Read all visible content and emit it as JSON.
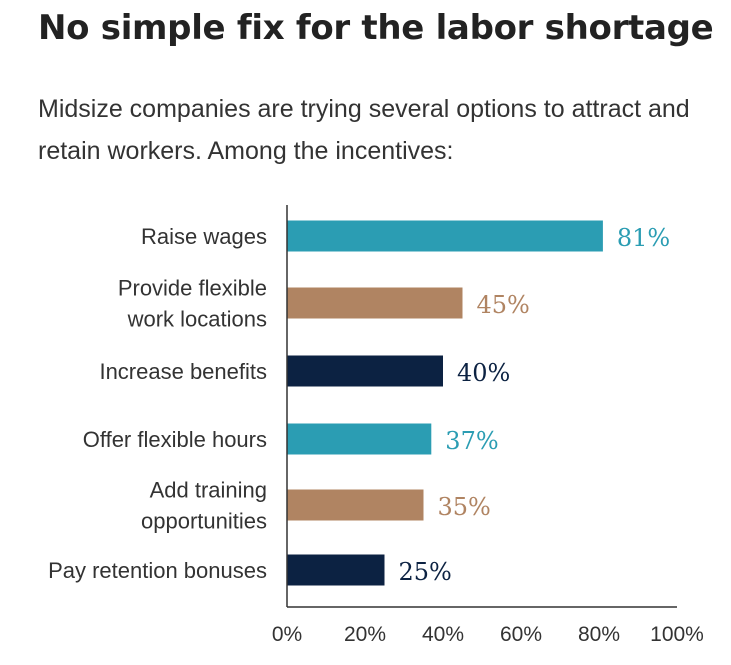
{
  "header": {
    "title": "No simple fix for the labor shortage",
    "subtitle": "Midsize companies are trying several options to attract and retain workers. Among the incentives:"
  },
  "colors": {
    "teal": "#2b9db3",
    "tan": "#b08462",
    "navy": "#0c2242",
    "axis": "#333333"
  },
  "chart_data": {
    "type": "bar",
    "orientation": "horizontal",
    "categories": [
      "Raise wages",
      "Provide flexible work locations",
      "Increase benefits",
      "Offer flexible hours",
      "Add training opportunities",
      "Pay retention bonuses"
    ],
    "category_lines": [
      [
        "Raise wages"
      ],
      [
        "Provide flexible",
        "work locations"
      ],
      [
        "Increase benefits"
      ],
      [
        "Offer flexible hours"
      ],
      [
        "Add training",
        "opportunities"
      ],
      [
        "Pay retention bonuses"
      ]
    ],
    "values": [
      81,
      45,
      40,
      37,
      35,
      25
    ],
    "value_labels": [
      "81%",
      "45%",
      "40%",
      "37%",
      "35%",
      "25%"
    ],
    "bar_colors": [
      "#2b9db3",
      "#b08462",
      "#0c2242",
      "#2b9db3",
      "#b08462",
      "#0c2242"
    ],
    "xlim": [
      0,
      100
    ],
    "x_ticks": [
      0,
      20,
      40,
      60,
      80,
      100
    ],
    "x_tick_labels": [
      "0%",
      "20%",
      "40%",
      "60%",
      "80%",
      "100%"
    ],
    "grid": false,
    "legend": "none"
  }
}
